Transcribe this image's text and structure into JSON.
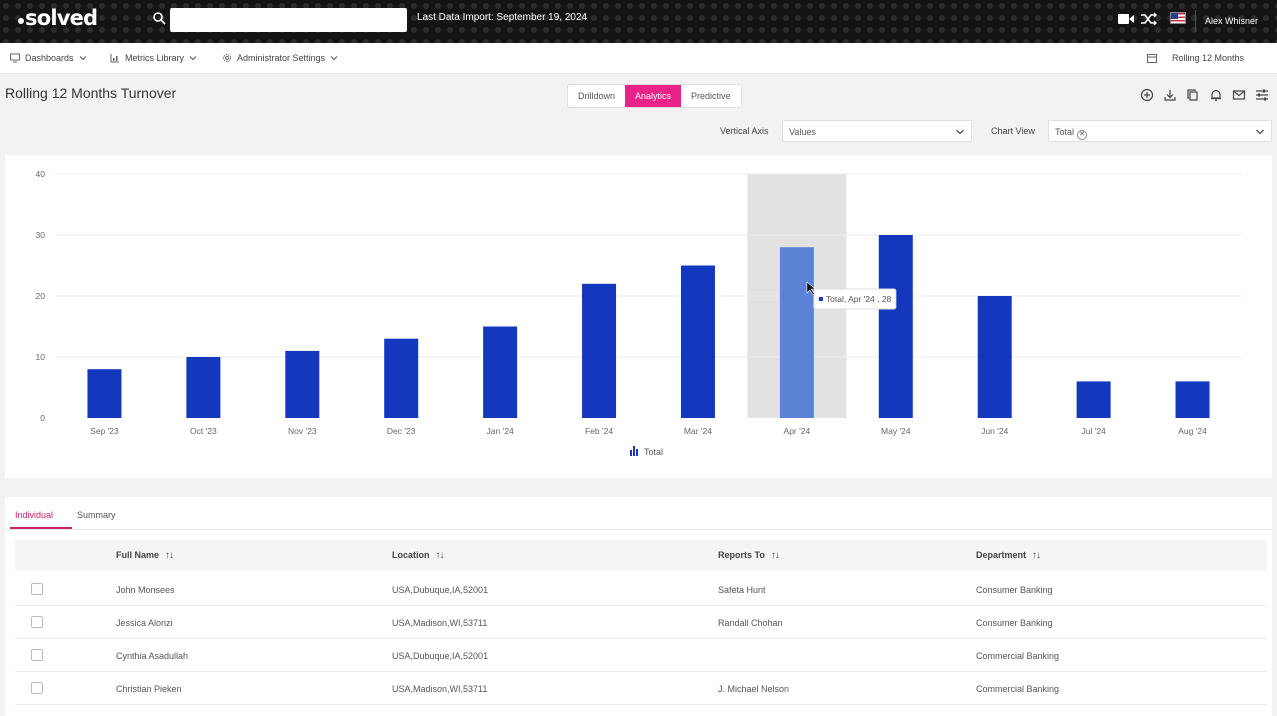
{
  "topbar": {
    "logo": "solved",
    "search_value": "",
    "import_text": "Last Data Import: September 19, 2024",
    "user_name": "Alex Whisner"
  },
  "nav": {
    "dashboards": "Dashboards",
    "metrics_library": "Metrics Library",
    "admin_settings": "Administrator Settings",
    "period": "Rolling 12 Months"
  },
  "page": {
    "title": "Rolling 12 Months Turnover",
    "view_tabs": [
      "Drilldown",
      "Analytics",
      "Predictive"
    ],
    "active_view": "Analytics"
  },
  "controls": {
    "vertical_axis_label": "Vertical Axis",
    "vertical_axis_value": "Values",
    "chart_view_label": "Chart View",
    "chart_view_chip": "Total"
  },
  "chart_data": {
    "type": "bar",
    "categories": [
      "Sep '23",
      "Oct '23",
      "Nov '23",
      "Dec '23",
      "Jan '24",
      "Feb '24",
      "Mar '24",
      "Apr '24",
      "May '24",
      "Jun '24",
      "Jul '24",
      "Aug '24"
    ],
    "series": [
      {
        "name": "Total",
        "values": [
          8,
          10,
          11,
          13,
          15,
          22,
          25,
          28,
          30,
          20,
          6,
          6
        ]
      }
    ],
    "ylim": [
      0,
      40
    ],
    "yticks": [
      0,
      10,
      20,
      30,
      40
    ],
    "grid": true,
    "legend": "bottom-center",
    "highlighted_category": "Apr '24",
    "tooltip": "Total, Apr '24 , 28",
    "colors": {
      "bar": "#1338be",
      "highlight_bar": "#5b82d4",
      "highlight_band": "#e2e2e2"
    }
  },
  "lower": {
    "tabs": [
      "Individual",
      "Summary"
    ],
    "active_tab": "Individual",
    "columns": [
      "Full Name",
      "Location",
      "Reports To",
      "Department"
    ],
    "rows": [
      [
        "John Monsees",
        "USA,Dubuque,IA,52001",
        "Safeta Hunt",
        "Consumer Banking"
      ],
      [
        "Jessica Alonzi",
        "USA,Madison,WI,53711",
        "Randall Chohan",
        "Consumer Banking"
      ],
      [
        "Cynthia Asadullah",
        "USA,Dubuque,IA,52001",
        "",
        "Commercial Banking"
      ],
      [
        "Christian Pieken",
        "USA,Madison,WI,53711",
        "J. Michael Nelson",
        "Commercial Banking"
      ]
    ]
  }
}
